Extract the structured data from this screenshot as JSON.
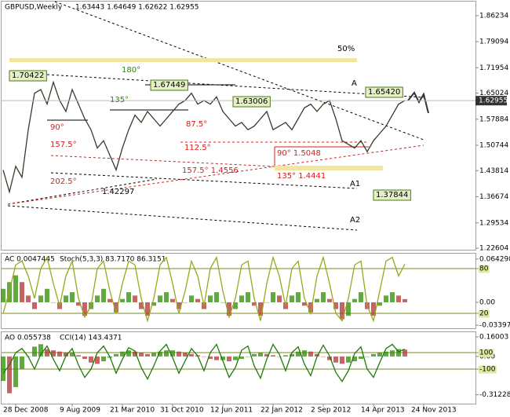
{
  "chart_data": [
    {
      "type": "line",
      "title": "GBPUSD,Weekly",
      "subtitle": "1.63443 1.64649 1.62622 1.62955",
      "categories": [
        null,
        null,
        "28 Dec 2008",
        null,
        null,
        null,
        null,
        null,
        null,
        null,
        null,
        "9 Aug 2009",
        null,
        null,
        null,
        null,
        null,
        null,
        null,
        "21 Mar 2010",
        null,
        null,
        null,
        null,
        null,
        null,
        null,
        "31 Oct 2010",
        null,
        null,
        null,
        null,
        null,
        null,
        null,
        "12 Jun 2011",
        null,
        null,
        null,
        null,
        null,
        null,
        null,
        "22 Jan 2012",
        null,
        null,
        null,
        null,
        null,
        null,
        null,
        "2 Sep 2012",
        null,
        null,
        null,
        null,
        null,
        null,
        null,
        "14 Apr 2013",
        null,
        null,
        null,
        null,
        null,
        null,
        null,
        "24 Nov 2013"
      ],
      "series": [
        {
          "name": "GBPUSD",
          "color": "#3a3a2a",
          "values": [
            1.44,
            1.38,
            1.45,
            1.42,
            1.55,
            1.65,
            1.66,
            1.62,
            1.68,
            1.63,
            1.6,
            1.66,
            1.62,
            1.58,
            1.55,
            1.5,
            1.52,
            1.48,
            1.44,
            1.5,
            1.55,
            1.59,
            1.57,
            1.6,
            1.58,
            1.56,
            1.58,
            1.6,
            1.62,
            1.63,
            1.65,
            1.62,
            1.63,
            1.62,
            1.64,
            1.6,
            1.58,
            1.56,
            1.57,
            1.55,
            1.56,
            1.58,
            1.6,
            1.55,
            1.56,
            1.57,
            1.55,
            1.58,
            1.61,
            1.62,
            1.6,
            1.62,
            1.63,
            1.58,
            1.52,
            1.51,
            1.5,
            1.52,
            1.49,
            1.52,
            1.54,
            1.56,
            1.59,
            1.62,
            1.63,
            null,
            null,
            null
          ]
        }
      ],
      "last": 1.62955,
      "ylim": [
        1.2218,
        1.9006
      ],
      "yticks": [
        1.86234,
        1.79094,
        1.71954,
        1.65024,
        1.57884,
        1.50744,
        1.43814,
        1.36674,
        1.29534,
        1.22604
      ],
      "annotations": [
        "50%",
        "180°",
        "1.70422",
        "1.67449",
        "135°",
        "1.63006",
        "90°",
        "87.5°",
        "157.5°",
        "112.5°",
        "202.5°",
        "1.42297",
        "157.5° 1.4556",
        "90° 1.5048",
        "135° 1.4441",
        "A",
        "1.65420",
        "A1",
        "1.37844",
        "A2"
      ]
    },
    {
      "type": "oscillator",
      "title": "AC 0.0047445",
      "subtitle": "Stoch(5,3,3) 83.7170 86.3151",
      "series": [
        {
          "name": "AC",
          "color": "#2e8b00",
          "values": [
            0.02,
            0.03,
            0.04,
            0.03,
            0.01,
            -0.01,
            0.01,
            0.02,
            0,
            -0.01,
            0.01,
            0.015,
            -0.005,
            -0.02,
            -0.01,
            0.01,
            0.02,
            0.005,
            -0.015,
            0.005,
            0.015,
            0.01,
            -0.01,
            -0.02,
            -0.005,
            0.01,
            0.015,
            0.005,
            -0.01,
            0,
            0.01,
            0.005,
            -0.01,
            0.01,
            0.015,
            0,
            -0.02,
            -0.01,
            0.01,
            0.015,
            -0.005,
            -0.02,
            0,
            0.015,
            0.01,
            -0.01,
            0.01,
            0.015,
            -0.005,
            -0.015,
            0.005,
            0.015,
            0.005,
            -0.01,
            -0.025,
            -0.02,
            0.005,
            0.015,
            -0.01,
            -0.02,
            -0.005,
            0.01,
            0.015,
            0.01,
            0.0047445,
            null,
            null,
            null
          ]
        },
        {
          "name": "Stoch",
          "color": "#9aa61c",
          "axis": "y2",
          "values": [
            20,
            50,
            85,
            90,
            70,
            40,
            80,
            95,
            60,
            30,
            70,
            90,
            40,
            15,
            30,
            80,
            90,
            50,
            20,
            60,
            90,
            85,
            40,
            10,
            40,
            85,
            95,
            60,
            20,
            50,
            90,
            70,
            30,
            80,
            95,
            50,
            15,
            40,
            85,
            90,
            40,
            10,
            60,
            95,
            70,
            30,
            80,
            90,
            40,
            20,
            70,
            95,
            60,
            20,
            10,
            40,
            85,
            90,
            30,
            10,
            50,
            90,
            95,
            70,
            86,
            null,
            null,
            null
          ]
        }
      ],
      "ylim": [
        -0.0385,
        0.0722
      ],
      "yticks": [
        0.064298,
        {
          "value": 0,
          "label": "0.00"
        },
        -0.033974
      ],
      "y2lim": [
        0,
        100
      ],
      "y2ticks": [
        80,
        20
      ]
    },
    {
      "type": "oscillator",
      "title": "AO 0.055738",
      "subtitle": "CCI(14) 143.4371",
      "series": [
        {
          "name": "AO",
          "color": "#2e8b00",
          "values": [
            -0.2,
            -0.3,
            -0.25,
            -0.1,
            0,
            0.08,
            0.1,
            0.06,
            0.05,
            0.04,
            0.03,
            0.03,
            0.01,
            -0.02,
            -0.05,
            -0.06,
            -0.04,
            -0.01,
            0.02,
            0.04,
            0.05,
            0.04,
            0.03,
            0.02,
            0.03,
            0.04,
            0.05,
            0.05,
            0.04,
            0.03,
            0.02,
            0.01,
            0,
            -0.02,
            -0.03,
            -0.03,
            -0.04,
            -0.03,
            -0.02,
            0,
            0.02,
            0.03,
            0.02,
            0.01,
            0,
            0.01,
            0.02,
            0.04,
            0.05,
            0.04,
            0.02,
            0,
            -0.03,
            -0.05,
            -0.06,
            -0.05,
            -0.04,
            -0.02,
            0,
            0.02,
            0.03,
            0.04,
            0.05,
            0.06,
            0.055738,
            null,
            null,
            null
          ]
        },
        {
          "name": "CCI",
          "color": "#1f7a0a",
          "axis": "y2",
          "values": [
            -150,
            -50,
            100,
            150,
            50,
            -100,
            80,
            180,
            20,
            -120,
            60,
            150,
            -50,
            -200,
            -100,
            100,
            180,
            50,
            -150,
            20,
            160,
            120,
            -80,
            -220,
            -60,
            120,
            200,
            40,
            -150,
            0,
            150,
            60,
            -120,
            100,
            200,
            0,
            -200,
            -80,
            130,
            180,
            -60,
            -210,
            20,
            200,
            80,
            -120,
            100,
            170,
            -40,
            -180,
            50,
            190,
            60,
            -140,
            -250,
            -120,
            90,
            170,
            -100,
            -200,
            -20,
            150,
            200,
            110,
            143.4371,
            null,
            null,
            null
          ]
        }
      ],
      "ylim": [
        -0.385,
        0.198
      ],
      "yticks": [
        0.16003,
        {
          "value": 0,
          "label": "0.00"
        },
        -0.312288
      ],
      "y2lim": [
        -519,
        348
      ],
      "y2ticks": [
        100,
        -100
      ]
    }
  ]
}
